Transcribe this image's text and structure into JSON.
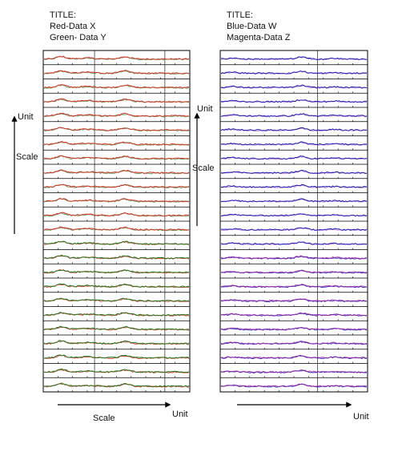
{
  "left_panel": {
    "title_lines": [
      "TITLE:",
      "Red-Data X",
      "Green- Data Y"
    ],
    "y_axis_text_unit": "Unit",
    "y_axis_text_scale": "Scale",
    "x_axis_text_scale": "Scale",
    "x_axis_text_unit": "Unit"
  },
  "right_panel": {
    "title_lines": [
      "TITLE:",
      "Blue-Data W",
      "Magenta-Data Z"
    ],
    "y_axis_text_unit": "Unit",
    "y_axis_text_scale": "Scale",
    "x_axis_text_unit": "Unit"
  },
  "chart_data": [
    {
      "type": "line",
      "panel": "left",
      "rows": 24,
      "series": [
        {
          "name": "Red-Data X",
          "color": "#d93025"
        },
        {
          "name": "Green- Data Y",
          "color": "#1e7a1e"
        }
      ],
      "grid": true
    },
    {
      "type": "line",
      "panel": "right",
      "rows": 24,
      "series": [
        {
          "name": "Blue-Data W",
          "color": "#1a1ab8"
        },
        {
          "name": "Magenta-Data Z",
          "color": "#a020a0"
        }
      ],
      "grid": true
    }
  ]
}
